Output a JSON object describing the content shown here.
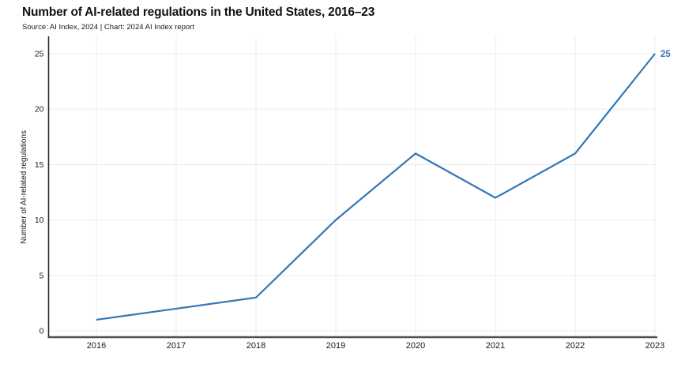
{
  "title": "Number of AI-related regulations in the United States, 2016–23",
  "subtitle": "Source: AI Index, 2024 | Chart: 2024 AI Index report",
  "chart_data": {
    "type": "line",
    "title": "Number of AI-related regulations in the United States, 2016–23",
    "categories": [
      "2016",
      "2017",
      "2018",
      "2019",
      "2020",
      "2021",
      "2022",
      "2023"
    ],
    "series": [
      {
        "name": "Number of AI-related regulations",
        "values": [
          1,
          2,
          3,
          10,
          16,
          12,
          16,
          25
        ]
      }
    ],
    "xlabel": "",
    "ylabel": "Number of AI-related regulations",
    "yticks": [
      0,
      5,
      10,
      15,
      20,
      25
    ],
    "ylim": [
      0,
      25
    ],
    "grid": true,
    "legend": "none",
    "end_label": "25",
    "colors": {
      "line": "#3277b8",
      "end_label": "#3277b8",
      "gridline": "#ececec",
      "y_axis_line": "#2b2b2b",
      "x_axis_line": "#4f4f4f",
      "tick_text": "#1a1a1a"
    }
  }
}
